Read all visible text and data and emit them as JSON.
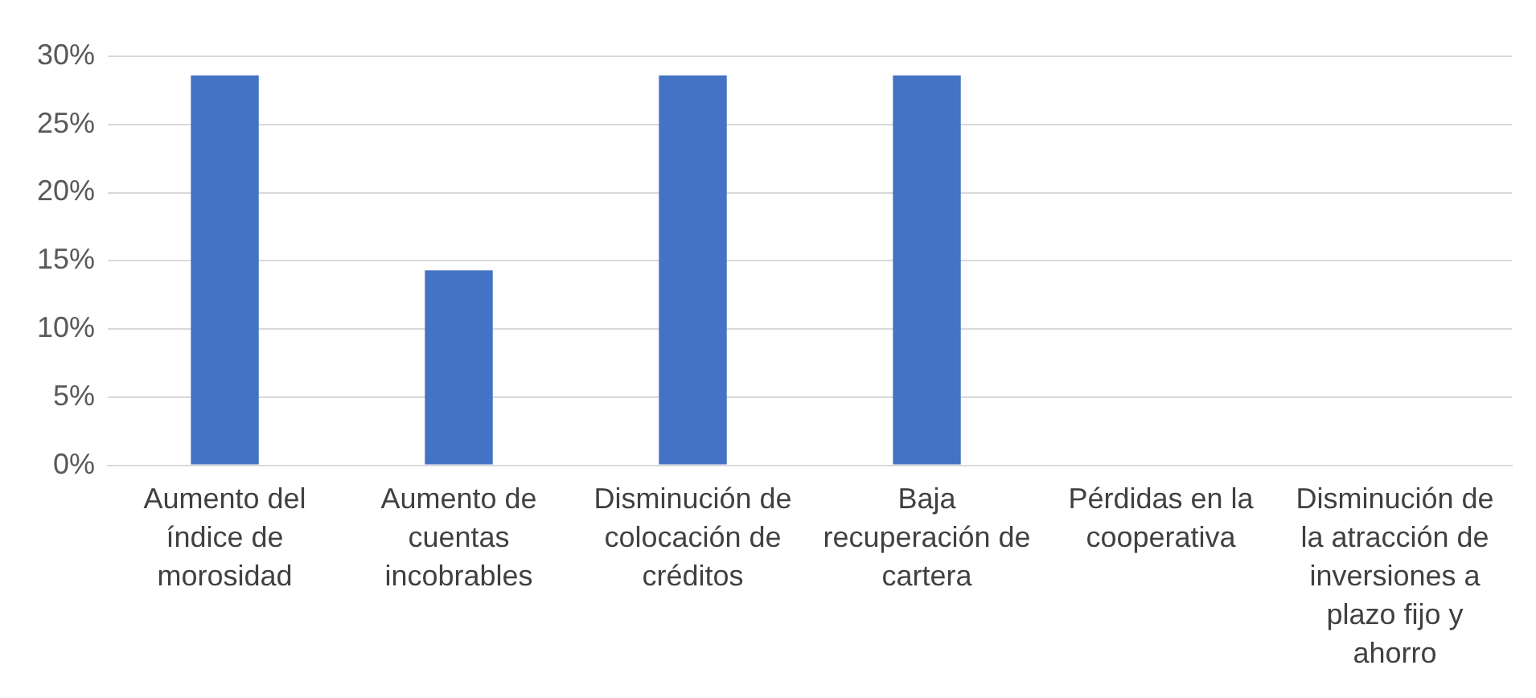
{
  "chart_data": {
    "type": "bar",
    "categories": [
      "Aumento del índice de morosidad",
      "Aumento de cuentas incobrables",
      "Disminución de colocación de créditos",
      "Baja recuperación de cartera",
      "Pérdidas en la cooperativa",
      "Disminución de la atracción de inversiones a plazo fijo y ahorro"
    ],
    "values": [
      28.6,
      14.3,
      28.6,
      28.6,
      0,
      0
    ],
    "color": "#4472c4",
    "ylim": [
      0,
      30
    ],
    "yticks": [
      {
        "value": 0,
        "label": "0%"
      },
      {
        "value": 5,
        "label": "5%"
      },
      {
        "value": 10,
        "label": "10%"
      },
      {
        "value": 15,
        "label": "15%"
      },
      {
        "value": 20,
        "label": "20%"
      },
      {
        "value": 25,
        "label": "25%"
      },
      {
        "value": 30,
        "label": "30%"
      }
    ],
    "grid": "y",
    "legend": false
  }
}
